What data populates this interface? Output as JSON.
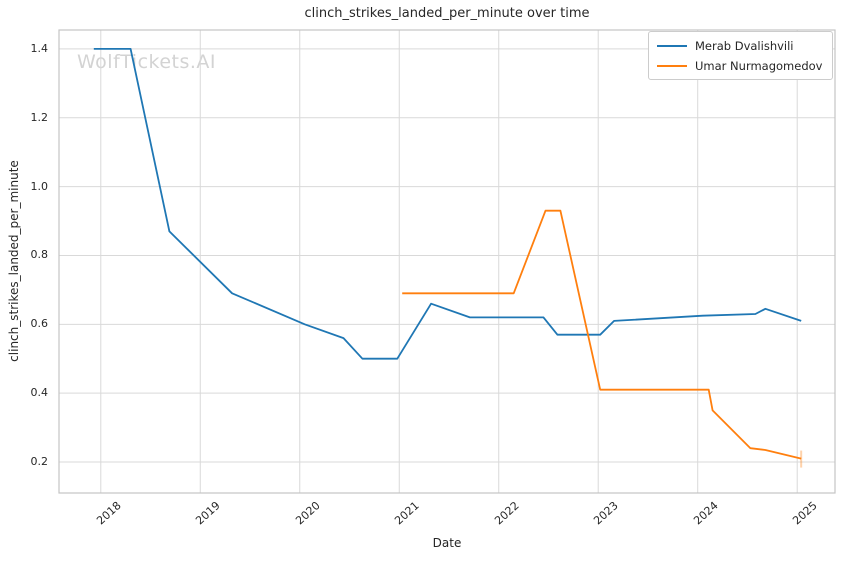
{
  "watermark": {
    "text": "WolfTickets.AI"
  },
  "chart_data": {
    "type": "line",
    "title": "clinch_strikes_landed_per_minute over time",
    "xlabel": "Date",
    "ylabel": "clinch_strikes_landed_per_minute",
    "grid": true,
    "legend_position": "upper right",
    "xlim": [
      2017.58,
      2025.38
    ],
    "ylim": [
      0.11,
      1.455
    ],
    "x_ticks": [
      2018,
      2019,
      2020,
      2021,
      2022,
      2023,
      2024,
      2025
    ],
    "y_ticks": [
      0.2,
      0.4,
      0.6,
      0.8,
      1.0,
      1.2,
      1.4
    ],
    "colors": {
      "grid": "#d9d9d9",
      "spine": "#c4c4c4",
      "text": "#262626",
      "watermark": "#d3d3d3"
    },
    "series": [
      {
        "name": "Merab Dvalishvili",
        "color": "#1f77b4",
        "end_tick": false,
        "points": [
          [
            2017.93,
            1.4
          ],
          [
            2018.3,
            1.4
          ],
          [
            2018.69,
            0.87
          ],
          [
            2019.32,
            0.69
          ],
          [
            2020.05,
            0.6
          ],
          [
            2020.44,
            0.56
          ],
          [
            2020.63,
            0.5
          ],
          [
            2020.98,
            0.5
          ],
          [
            2021.32,
            0.66
          ],
          [
            2021.71,
            0.62
          ],
          [
            2022.45,
            0.62
          ],
          [
            2022.59,
            0.57
          ],
          [
            2023.02,
            0.57
          ],
          [
            2023.16,
            0.61
          ],
          [
            2024.05,
            0.625
          ],
          [
            2024.58,
            0.63
          ],
          [
            2024.68,
            0.645
          ],
          [
            2025.04,
            0.61
          ]
        ]
      },
      {
        "name": "Umar Nurmagomedov",
        "color": "#ff7f0e",
        "end_tick": true,
        "points": [
          [
            2021.03,
            0.69
          ],
          [
            2022.15,
            0.69
          ],
          [
            2022.47,
            0.93
          ],
          [
            2022.62,
            0.93
          ],
          [
            2023.02,
            0.41
          ],
          [
            2024.11,
            0.41
          ],
          [
            2024.15,
            0.35
          ],
          [
            2024.53,
            0.24
          ],
          [
            2024.68,
            0.235
          ],
          [
            2025.04,
            0.21
          ]
        ]
      }
    ]
  }
}
